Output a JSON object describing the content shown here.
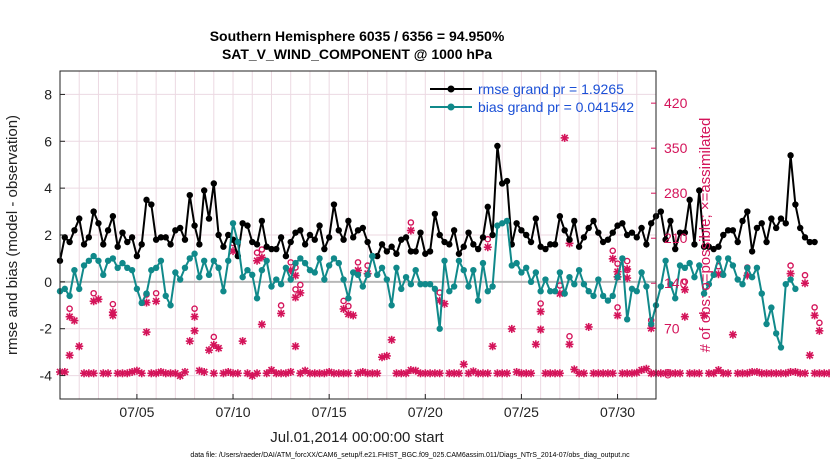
{
  "chart_data": {
    "type": "line",
    "title": "Southern Hemisphere 6035 / 6356 = 94.950%",
    "subtitle": "SAT_V_WIND_COMPONENT @ 1000 hPa",
    "xlabel": "Jul.01,2014 00:00:00 start",
    "ylabel": "rmse and bias (model - observation)",
    "y2label": "# of obs: o=possible; ×=assimilated",
    "xlim": [
      1,
      32
    ],
    "ylim": [
      -5,
      9
    ],
    "y2lim": [
      -40,
      470
    ],
    "x_ticks": [
      5,
      10,
      15,
      20,
      25,
      30
    ],
    "x_tick_labels": [
      "07/05",
      "07/10",
      "07/15",
      "07/20",
      "07/25",
      "07/30"
    ],
    "y_ticks": [
      -4,
      -2,
      0,
      2,
      4,
      6,
      8
    ],
    "y_tick_labels": [
      "-4",
      "-2",
      "0",
      "2",
      "4",
      "6",
      "8"
    ],
    "y2_ticks": [
      0,
      70,
      140,
      210,
      280,
      350,
      420
    ],
    "y2_tick_labels": [
      "0",
      "70",
      "140",
      "210",
      "280",
      "350",
      "420"
    ],
    "grid": true,
    "legend_position": "top-right",
    "x_step": 0.25,
    "series": [
      {
        "name": "rmse grand pr = 1.9265",
        "color": "#000000",
        "values": [
          0.9,
          1.9,
          1.7,
          2.2,
          2.7,
          1.6,
          1.9,
          3.0,
          2.5,
          1.6,
          2.2,
          2.8,
          1.5,
          2.1,
          1.7,
          1.9,
          1.1,
          1.6,
          3.5,
          3.3,
          1.8,
          1.9,
          1.9,
          1.6,
          2.2,
          2.3,
          1.8,
          3.7,
          2.4,
          1.6,
          3.9,
          2.7,
          4.2,
          2.0,
          1.5,
          2.0,
          1.8,
          1.1,
          2.5,
          2.4,
          1.7,
          1.6,
          2.6,
          1.5,
          1.4,
          1.4,
          1.9,
          1.1,
          1.7,
          2.1,
          2.2,
          1.6,
          2.0,
          1.8,
          2.4,
          1.4,
          1.9,
          3.3,
          2.2,
          1.8,
          2.6,
          1.9,
          2.2,
          2.3,
          1.7,
          1.1,
          1.1,
          1.6,
          1.3,
          1.5,
          1.2,
          1.8,
          1.9,
          1.3,
          1.3,
          2.1,
          1.2,
          1.3,
          2.9,
          2.0,
          1.7,
          1.6,
          2.2,
          1.2,
          1.5,
          2.1,
          1.6,
          1.4,
          1.9,
          3.2,
          2.0,
          5.8,
          4.2,
          4.3,
          1.6,
          2.5,
          2.2,
          2.0,
          1.7,
          2.7,
          1.5,
          1.4,
          1.6,
          1.6,
          2.8,
          2.2,
          1.8,
          2.6,
          1.5,
          1.9,
          2.3,
          2.6,
          2.1,
          1.7,
          1.8,
          2.1,
          2.4,
          2.5,
          2.0,
          2.1,
          1.9,
          2.3,
          1.6,
          2.5,
          2.8,
          3.0,
          1.8,
          2.6,
          1.4,
          2.1,
          2.1,
          3.5,
          1.6,
          3.9,
          1.5,
          1.5,
          1.4,
          1.5,
          2.0,
          2.2,
          2.2,
          1.7,
          2.6,
          3.0,
          1.3,
          2.3,
          2.5,
          1.7,
          2.7,
          2.3,
          2.7,
          2.5,
          5.4,
          3.3,
          2.3,
          1.9,
          1.7,
          1.7
        ]
      },
      {
        "name": "bias grand pr = 0.041542",
        "color": "#10898a",
        "values": [
          -0.4,
          -0.3,
          -0.6,
          0.5,
          -0.3,
          0.7,
          0.9,
          1.1,
          0.9,
          0.3,
          0.9,
          1.0,
          0.6,
          0.8,
          0.6,
          0.5,
          -0.3,
          -0.9,
          -0.5,
          0.5,
          0.6,
          0.9,
          -0.6,
          -1.0,
          0.4,
          0.1,
          0.6,
          1.0,
          1.2,
          0.2,
          0.9,
          0.3,
          0.9,
          0.6,
          -0.4,
          0.9,
          2.5,
          1.7,
          0.2,
          0.5,
          0.3,
          -0.7,
          0.5,
          0.9,
          -0.2,
          0.1,
          -0.1,
          0.6,
          0.1,
          0.8,
          1.0,
          0.8,
          0.5,
          0.4,
          1.0,
          0.1,
          0.7,
          1.0,
          0.8,
          0.1,
          -0.7,
          0.4,
          0.3,
          -0.2,
          0.3,
          1.1,
          0.3,
          0.6,
          0.1,
          -1.0,
          0.6,
          -0.3,
          0.2,
          -0.1,
          0.5,
          -0.1,
          -0.1,
          -0.1,
          -0.3,
          -2.0,
          0.9,
          -0.4,
          -0.2,
          0.9,
          0.5,
          -0.2,
          0.5,
          -0.8,
          0.8,
          -0.4,
          -0.2,
          2.4,
          2.5,
          2.6,
          0.7,
          0.8,
          0.4,
          0.6,
          0.0,
          0.4,
          -0.4,
          0.1,
          -0.4,
          -0.4,
          0.4,
          -0.5,
          0.2,
          -0.1,
          0.5,
          -0.1,
          -0.4,
          -0.6,
          0.1,
          -0.6,
          -0.8,
          -0.6,
          0.2,
          1.0,
          -1.6,
          -0.3,
          -0.4,
          0.4,
          -0.2,
          -1.8,
          -1.0,
          -0.2,
          0.9,
          -0.1,
          -0.7,
          0.7,
          0.6,
          0.8,
          0.2,
          0.7,
          -0.5,
          -0.1,
          0.3,
          1.0,
          0.3,
          1.0,
          0.7,
          0.1,
          -0.1,
          0.6,
          0.2,
          0.6,
          -0.5,
          -1.8,
          -1.1,
          -2.2,
          -2.8,
          -0.1,
          0.1,
          -0.3
        ]
      }
    ],
    "obs_counts": {
      "name": "# of obs",
      "color": "#d4145a",
      "possible": [
        2,
        2,
        28,
        82,
        42,
        0,
        0,
        0,
        115,
        0,
        0,
        90,
        0,
        0,
        0,
        2,
        4,
        0,
        64,
        0,
        0,
        2,
        0,
        0,
        0,
        -4,
        2,
        50,
        66,
        4,
        2,
        36,
        0,
        39,
        0,
        2,
        0,
        0,
        50,
        0,
        -4,
        0,
        76,
        0,
        5,
        0,
        0,
        0,
        2,
        42,
        0,
        4,
        0,
        0,
        0,
        0,
        2,
        0,
        0,
        0,
        0,
        90,
        0,
        2,
        0,
        0,
        0,
        25,
        27,
        52,
        0,
        0,
        0,
        5,
        4,
        0,
        0,
        0,
        0,
        0,
        108,
        0,
        0,
        0,
        14,
        0,
        3,
        0,
        0,
        0,
        42,
        0,
        0,
        0,
        69,
        2,
        0,
        0,
        0,
        45,
        68,
        0,
        0,
        0,
        0,
        366,
        202,
        6,
        0,
        0,
        72,
        0,
        0,
        0,
        0,
        0,
        150,
        0,
        0,
        0,
        1,
        5,
        7,
        0,
        0,
        0,
        0,
        0,
        0,
        0,
        88,
        0,
        0,
        0,
        90,
        0,
        0,
        5,
        0,
        0,
        60,
        0,
        0,
        0,
        2,
        2,
        0,
        0,
        0,
        0,
        0,
        0,
        2,
        2,
        0,
        0,
        28,
        0,
        0,
        0,
        0,
        0,
        0,
        0
      ],
      "assimilated": [
        2,
        2,
        28,
        82,
        42,
        0,
        0,
        0,
        115,
        0,
        0,
        90,
        0,
        0,
        0,
        2,
        4,
        0,
        64,
        0,
        0,
        2,
        0,
        0,
        0,
        -4,
        2,
        50,
        66,
        4,
        2,
        36,
        0,
        39,
        0,
        2,
        0,
        0,
        50,
        0,
        -4,
        0,
        76,
        0,
        5,
        0,
        0,
        0,
        2,
        42,
        0,
        4,
        0,
        0,
        0,
        0,
        2,
        0,
        0,
        0,
        0,
        90,
        0,
        2,
        0,
        0,
        0,
        25,
        27,
        52,
        0,
        0,
        0,
        5,
        4,
        0,
        0,
        0,
        0,
        0,
        108,
        0,
        0,
        0,
        14,
        0,
        3,
        0,
        0,
        0,
        42,
        0,
        0,
        0,
        69,
        2,
        0,
        0,
        0,
        45,
        68,
        0,
        0,
        0,
        0,
        366,
        202,
        6,
        0,
        0,
        72,
        0,
        0,
        0,
        0,
        0,
        150,
        0,
        0,
        0,
        1,
        5,
        7,
        0,
        0,
        0,
        0,
        0,
        0,
        0,
        88,
        0,
        0,
        0,
        90,
        0,
        0,
        5,
        0,
        0,
        60,
        0,
        0,
        0,
        2,
        2,
        0,
        0,
        0,
        0,
        0,
        0,
        2,
        2,
        0,
        0,
        28,
        0,
        0,
        0,
        0,
        0,
        0,
        0
      ],
      "poss_markers": [
        [
          "poss",
          [
            2,
            88
          ],
          [
            7,
            112
          ],
          [
            11,
            95
          ],
          [
            18,
            110
          ],
          [
            20,
            112
          ],
          [
            28,
            88
          ],
          [
            32,
            44
          ],
          [
            36,
            190
          ],
          [
            41,
            175
          ],
          [
            42,
            180
          ],
          [
            46,
            93
          ],
          [
            48,
            160
          ],
          [
            49,
            152
          ],
          [
            49,
            118
          ],
          [
            50,
            125
          ],
          [
            59,
            100
          ],
          [
            60,
            92
          ],
          [
            62,
            160
          ],
          [
            64,
            155
          ],
          [
            73,
            222
          ],
          [
            79,
            113
          ],
          [
            89,
            196
          ],
          [
            100,
            96
          ],
          [
            104,
            124
          ],
          [
            106,
            45
          ],
          [
            115,
            178
          ],
          [
            116,
            158
          ],
          [
            116,
            90
          ],
          [
            118,
            162
          ],
          [
            118,
            148
          ],
          [
            123,
            70
          ],
          [
            130,
            130
          ],
          [
            137,
            154
          ],
          [
            143,
            152
          ],
          [
            152,
            155
          ],
          [
            155,
            140
          ],
          [
            157,
            90
          ],
          [
            158,
            66
          ]
        ]
      ]
    },
    "footnote": "data file: /Users/raeder/DAI/ATM_forcXX/CAM6_setup/f.e21.FHIST_BGC.f09_025.CAM6assim.011/Diags_NTrS_2014-07/obs_diag_output.nc"
  }
}
